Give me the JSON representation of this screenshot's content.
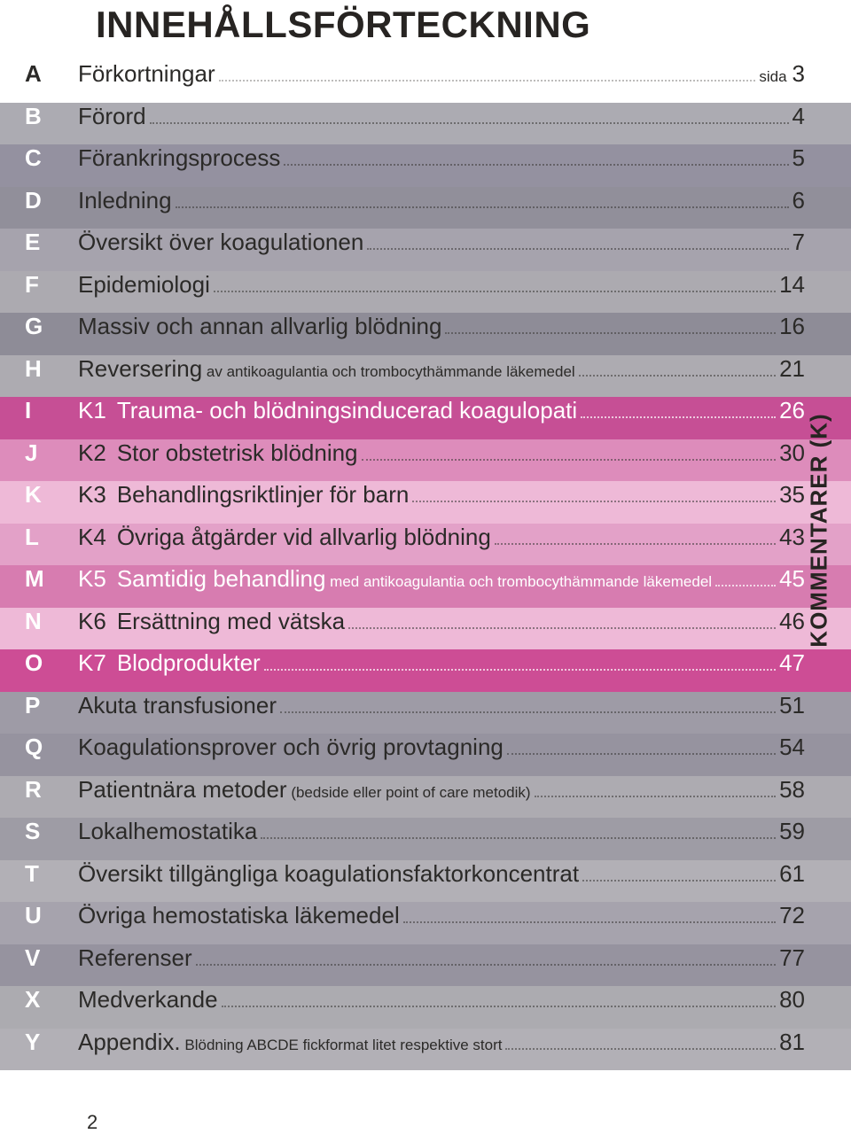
{
  "title": "INNEHÅLLSFÖRTECKNING",
  "page_number": "2",
  "kommentarer_label": "KOMMENTARER (K)",
  "colors": {
    "title": "#272422",
    "text_default": "#2b2a28",
    "text_muted": "#544f4c",
    "leader_default": "#bdbcbb"
  },
  "bands": {
    "grey1": "#acabb2",
    "grey2": "#9491a0",
    "grey3": "#918f9a",
    "grey4": "#a6a3ad",
    "grey5": "#acaab0",
    "grey6": "#8e8c97",
    "grey7": "#adabb1",
    "grey8": "#a19fa7",
    "pink1": "#c64f95",
    "pink2": "#dd8cbb",
    "pink3": "#eeb9d7",
    "pink4": "#e3a1c8",
    "pink5": "#d77cb0",
    "pink6": "#eeb9d7",
    "pink7": "#cd4d95",
    "foot1": "#9e9ba6",
    "foot2": "#96939f",
    "foot3": "#adabb1",
    "foot4": "#9e9ca5",
    "foot5": "#b2b0b6",
    "foot6": "#a6a3ad",
    "foot7": "#96939f",
    "foot8": "#acabb0",
    "foot9": "#b2b0b6"
  },
  "entries": [
    {
      "letter": "A",
      "title": "Förkortningar",
      "page": "3",
      "page_prefix": "sida",
      "bg": null
    },
    {
      "letter": "B",
      "title": "Förord",
      "page": "4",
      "bg": "grey1"
    },
    {
      "letter": "C",
      "title": "Förankringsprocess",
      "page": "5",
      "bg": "grey2"
    },
    {
      "letter": "D",
      "title": "Inledning",
      "page": "6",
      "bg": "grey3"
    },
    {
      "letter": "E",
      "title": "Översikt över koagulationen",
      "page": "7",
      "bg": "grey4"
    },
    {
      "letter": "F",
      "title": "Epidemiologi",
      "page": "14",
      "bg": "grey5"
    },
    {
      "letter": "G",
      "title": "Massiv och annan allvarlig blödning",
      "page": "16",
      "bg": "grey6"
    },
    {
      "letter": "H",
      "title": "Reversering",
      "note": "av antikoagulantia och trombocythämmande läkemedel",
      "page": "21",
      "bg": "grey7"
    },
    {
      "letter": "I",
      "kcode": "K1",
      "title": "Trauma- och blödningsinducerad koagulopati",
      "page": "26",
      "bg": "pink1",
      "light": true
    },
    {
      "letter": "J",
      "kcode": "K2",
      "title": "Stor obstetrisk blödning",
      "page": "30",
      "bg": "pink2"
    },
    {
      "letter": "K",
      "kcode": "K3",
      "title": "Behandlingsriktlinjer för barn",
      "page": "35",
      "bg": "pink3"
    },
    {
      "letter": "L",
      "kcode": "K4",
      "title": "Övriga åtgärder vid allvarlig blödning",
      "page": "43",
      "bg": "pink4"
    },
    {
      "letter": "M",
      "kcode": "K5",
      "title": "Samtidig behandling",
      "note": "med antikoagulantia och trombocythämmande läkemedel",
      "page": "45",
      "bg": "pink5",
      "light": true
    },
    {
      "letter": "N",
      "kcode": "K6",
      "title": "Ersättning med vätska",
      "page": "46",
      "bg": "pink6"
    },
    {
      "letter": "O",
      "kcode": "K7",
      "title": "Blodprodukter",
      "page": "47",
      "bg": "pink7",
      "light": true
    },
    {
      "letter": "P",
      "title": "Akuta transfusioner",
      "page": "51",
      "bg": "foot1"
    },
    {
      "letter": "Q",
      "title": "Koagulationsprover och övrig provtagning",
      "page": "54",
      "bg": "foot2"
    },
    {
      "letter": "R",
      "title": "Patientnära metoder",
      "note": "(bedside eller point of care metodik)",
      "page": "58",
      "bg": "foot3"
    },
    {
      "letter": "S",
      "title": "Lokalhemostatika",
      "page": "59",
      "bg": "foot4"
    },
    {
      "letter": "T",
      "title": "Översikt tillgängliga koagulationsfaktorkoncentrat",
      "page": "61",
      "bg": "foot5"
    },
    {
      "letter": "U",
      "title": "Övriga hemostatiska läkemedel",
      "page": "72",
      "bg": "foot6"
    },
    {
      "letter": "V",
      "title": "Referenser",
      "page": "77",
      "bg": "foot7"
    },
    {
      "letter": "X",
      "title": "Medverkande",
      "page": "80",
      "bg": "foot8"
    },
    {
      "letter": "Y",
      "title": "Appendix.",
      "note": "Blödning ABCDE fickformat litet respektive stort",
      "page": "81",
      "bg": "foot9"
    }
  ]
}
